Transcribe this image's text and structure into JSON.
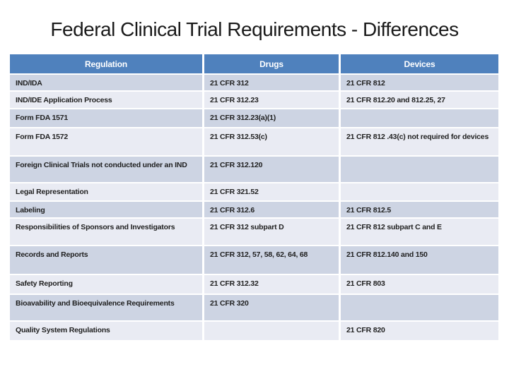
{
  "slide": {
    "title": "Federal Clinical Trial Requirements - Differences"
  },
  "table": {
    "columns": [
      "Regulation",
      "Drugs",
      "Devices"
    ],
    "rows": [
      {
        "regulation": "IND/IDA",
        "drugs": "21 CFR 312",
        "devices": "21 CFR 812"
      },
      {
        "regulation": "IND/IDE Application Process",
        "drugs": "21 CFR 312.23",
        "devices": "21 CFR 812.20 and 812.25, 27"
      },
      {
        "regulation": "Form FDA 1571",
        "drugs": "21 CFR 312.23(a)(1)",
        "devices": ""
      },
      {
        "regulation": "Form FDA 1572",
        "drugs": "21 CFR 312.53(c)",
        "devices": "21 CFR 812 .43(c) not required for devices"
      },
      {
        "regulation": "Foreign Clinical Trials not conducted under an IND",
        "drugs": "21 CFR 312.120",
        "devices": ""
      },
      {
        "regulation": "Legal Representation",
        "drugs": "21 CFR 321.52",
        "devices": ""
      },
      {
        "regulation": "Labeling",
        "drugs": "21 CFR 312.6",
        "devices": "21 CFR 812.5"
      },
      {
        "regulation": "Responsibilities of Sponsors and Investigators",
        "drugs": "21 CFR 312 subpart D",
        "devices": "21 CFR 812 subpart C and E"
      },
      {
        "regulation": "Records and Reports",
        "drugs": "21 CFR 312, 57, 58, 62, 64, 68",
        "devices": "21 CFR 812.140 and 150"
      },
      {
        "regulation": "Safety Reporting",
        "drugs": "21 CFR 312.32",
        "devices": "21 CFR 803"
      },
      {
        "regulation": "Bioavability and Bioequivalence Requirements",
        "drugs": "21 CFR 320",
        "devices": ""
      },
      {
        "regulation": "Quality System Regulations",
        "drugs": "",
        "devices": "21 CFR 820"
      }
    ]
  },
  "colors": {
    "header_bg": "#4F81BD",
    "header_text": "#FFFFFF",
    "row_dark": "#CDD4E3",
    "row_light": "#E9EBF3",
    "cell_text": "#1F1F1F",
    "title_text": "#1A1A1A"
  }
}
